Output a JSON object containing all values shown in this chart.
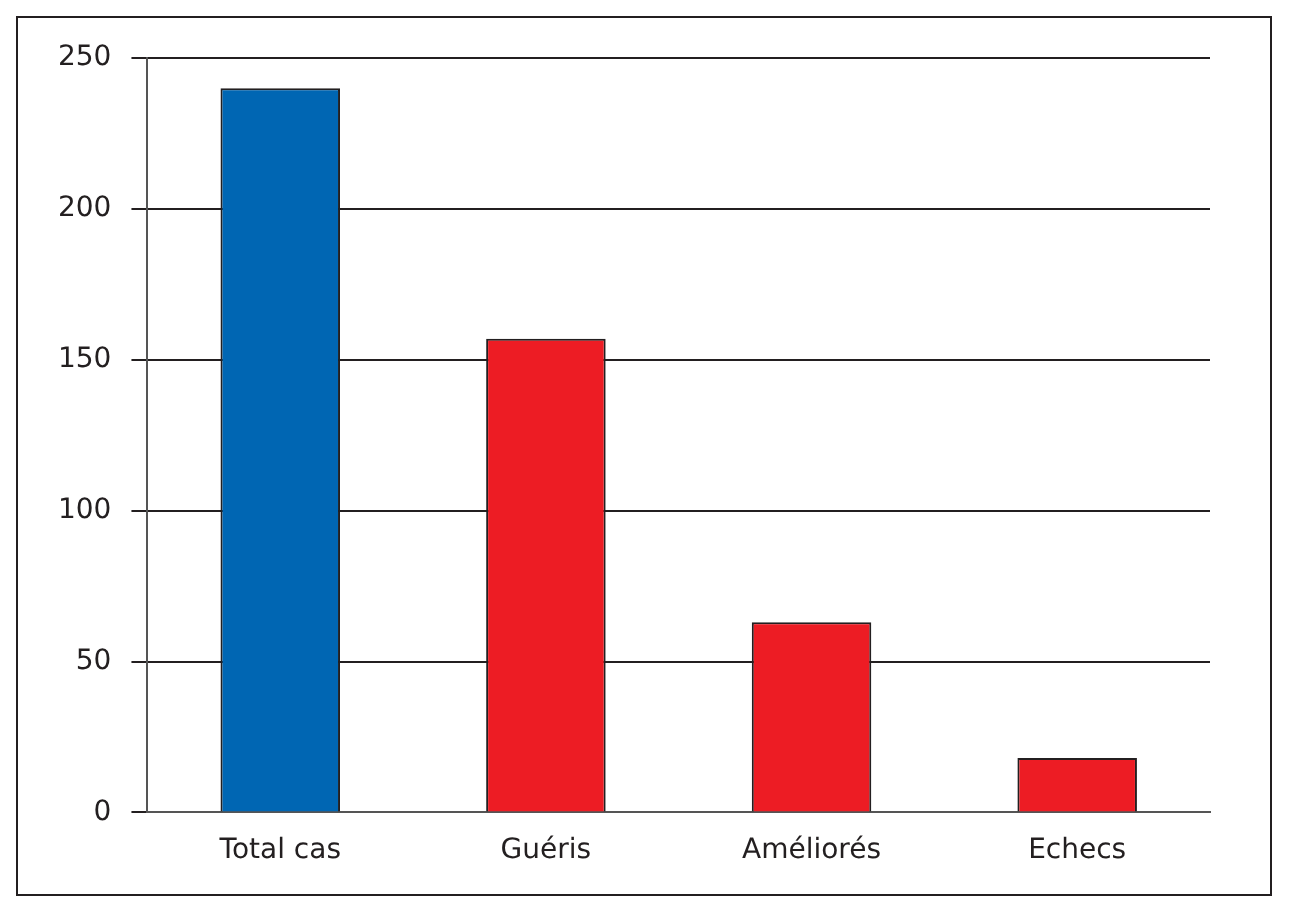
{
  "chart_data": {
    "type": "bar",
    "categories": [
      "Total cas",
      "Guéris",
      "Améliorés",
      "Echecs"
    ],
    "values": [
      240,
      157,
      63,
      18
    ],
    "colors": [
      "#0066b3",
      "#ed1c24",
      "#ed1c24",
      "#ed1c24"
    ],
    "ylim": [
      0,
      250
    ],
    "yticks": [
      0,
      50,
      100,
      150,
      200,
      250
    ],
    "grid": "y",
    "legend": false
  }
}
